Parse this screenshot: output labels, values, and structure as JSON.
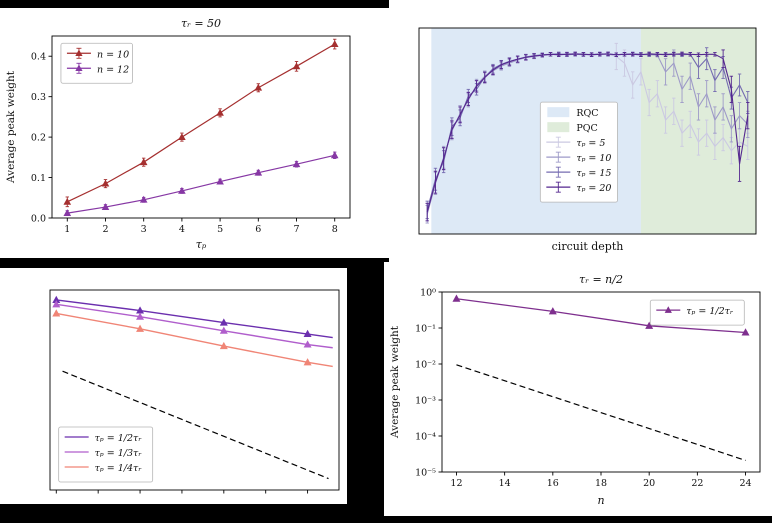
{
  "figure": {
    "background": "#000000",
    "panel_background": "#ffffff"
  },
  "chart_data": [
    {
      "id": "tl",
      "type": "line",
      "title": "τᵣ = 50",
      "xlabel": "τₚ",
      "xlabel_italic": true,
      "xlabel_dy": 30,
      "ylabel": "Average peak weight",
      "xlim": [
        0.6,
        8.4
      ],
      "ylim": [
        0,
        0.45
      ],
      "ylog": false,
      "xticks": [
        1,
        2,
        3,
        4,
        5,
        6,
        7,
        8
      ],
      "yticks": [
        0,
        0.1,
        0.2,
        0.3,
        0.4
      ],
      "ytick_labels": [
        "0.0",
        "0.1",
        "0.2",
        "0.3",
        "0.4"
      ],
      "margins": {
        "l": 52,
        "r": 40,
        "t": 28,
        "b": 40
      },
      "series": [
        {
          "name": "n = 10",
          "color": "#a52f2f",
          "marker": "triangle",
          "width": 1.2,
          "x": [
            1,
            2,
            3,
            4,
            5,
            6,
            7,
            8
          ],
          "y": [
            0.04,
            0.085,
            0.138,
            0.2,
            0.26,
            0.322,
            0.375,
            0.43
          ],
          "err": [
            0.012,
            0.01,
            0.01,
            0.01,
            0.01,
            0.01,
            0.012,
            0.012
          ]
        },
        {
          "name": "n = 12",
          "color": "#8637a4",
          "marker": "triangle",
          "width": 1.2,
          "x": [
            1,
            2,
            3,
            4,
            5,
            6,
            7,
            8
          ],
          "y": [
            0.012,
            0.027,
            0.045,
            0.067,
            0.09,
            0.112,
            0.133,
            0.155
          ],
          "err": [
            0.006,
            0.006,
            0.006,
            0.006,
            0.006,
            0.006,
            0.007,
            0.008
          ]
        }
      ],
      "legend": {
        "fx": 0.03,
        "fy": 0.04,
        "entries": [
          {
            "type": "errline",
            "marker": "triangle",
            "color": "#a52f2f",
            "label": "n = 10",
            "italic": true
          },
          {
            "type": "errline",
            "marker": "triangle",
            "color": "#8637a4",
            "label": "n = 12",
            "italic": true
          }
        ]
      }
    },
    {
      "id": "tr",
      "type": "line",
      "xlabel": "circuit depth",
      "xlabel_italic": false,
      "xlabel_dy": 16,
      "xlim": [
        0,
        41
      ],
      "ylim": [
        0,
        0.47
      ],
      "ylog": false,
      "margins": {
        "l": 30,
        "r": 16,
        "t": 28,
        "b": 28
      },
      "regions": [
        {
          "label": "RQC",
          "color": "#dde9f6",
          "x0": 1.5,
          "x1": 27
        },
        {
          "label": "PQC",
          "color": "#dfecda",
          "x0": 27,
          "x1": 41
        }
      ],
      "series": [
        {
          "name": "τₚ = 5",
          "color": "#cbc9e2",
          "width": 1.1,
          "x": [
            1,
            2,
            3,
            4,
            5,
            6,
            7,
            8,
            9,
            10,
            11,
            12,
            13,
            14,
            15,
            16,
            17,
            18,
            19,
            20,
            21,
            22,
            23,
            24,
            25,
            26,
            27,
            28,
            29,
            30,
            31,
            32,
            33,
            34,
            35,
            36,
            37,
            38,
            39,
            40
          ],
          "y": [
            0.05,
            0.12,
            0.17,
            0.24,
            0.27,
            0.31,
            0.335,
            0.355,
            0.375,
            0.385,
            0.392,
            0.398,
            0.402,
            0.406,
            0.408,
            0.41,
            0.409,
            0.41,
            0.411,
            0.41,
            0.409,
            0.41,
            0.41,
            0.405,
            0.39,
            0.34,
            0.37,
            0.3,
            0.32,
            0.26,
            0.28,
            0.23,
            0.25,
            0.21,
            0.23,
            0.2,
            0.22,
            0.19,
            0.21,
            0.2
          ],
          "err": [
            0.02,
            0.025,
            0.025,
            0.02,
            0.018,
            0.015,
            0.013,
            0.012,
            0.01,
            0.009,
            0.008,
            0.007,
            0.006,
            0.005,
            0.004,
            0.004,
            0.004,
            0.004,
            0.004,
            0.004,
            0.004,
            0.004,
            0.004,
            0.03,
            0.03,
            0.03,
            0.03,
            0.03,
            0.03,
            0.03,
            0.03,
            0.03,
            0.03,
            0.03,
            0.03,
            0.03,
            0.03,
            0.03,
            0.03,
            0.03
          ]
        },
        {
          "name": "τₚ = 10",
          "color": "#9e9ac8",
          "width": 1.1,
          "x": [
            1,
            2,
            3,
            4,
            5,
            6,
            7,
            8,
            9,
            10,
            11,
            12,
            13,
            14,
            15,
            16,
            17,
            18,
            19,
            20,
            21,
            22,
            23,
            24,
            25,
            26,
            27,
            28,
            29,
            30,
            31,
            32,
            33,
            34,
            35,
            36,
            37,
            38,
            39,
            40
          ],
          "y": [
            0.045,
            0.115,
            0.175,
            0.235,
            0.275,
            0.305,
            0.34,
            0.36,
            0.372,
            0.383,
            0.39,
            0.397,
            0.403,
            0.405,
            0.408,
            0.41,
            0.409,
            0.411,
            0.41,
            0.409,
            0.41,
            0.41,
            0.411,
            0.409,
            0.41,
            0.41,
            0.409,
            0.41,
            0.408,
            0.37,
            0.39,
            0.33,
            0.36,
            0.29,
            0.32,
            0.26,
            0.29,
            0.24,
            0.27,
            0.25
          ],
          "err": [
            0.02,
            0.025,
            0.025,
            0.02,
            0.018,
            0.015,
            0.013,
            0.012,
            0.01,
            0.009,
            0.008,
            0.007,
            0.006,
            0.005,
            0.004,
            0.004,
            0.004,
            0.004,
            0.004,
            0.004,
            0.004,
            0.004,
            0.004,
            0.004,
            0.004,
            0.004,
            0.004,
            0.004,
            0.004,
            0.03,
            0.03,
            0.03,
            0.03,
            0.03,
            0.03,
            0.03,
            0.03,
            0.03,
            0.03,
            0.03
          ]
        },
        {
          "name": "τₚ = 15",
          "color": "#756bb1",
          "width": 1.1,
          "x": [
            1,
            2,
            3,
            4,
            5,
            6,
            7,
            8,
            9,
            10,
            11,
            12,
            13,
            14,
            15,
            16,
            17,
            18,
            19,
            20,
            21,
            22,
            23,
            24,
            25,
            26,
            27,
            28,
            29,
            30,
            31,
            32,
            33,
            34,
            35,
            36,
            37,
            38,
            39,
            40
          ],
          "y": [
            0.055,
            0.125,
            0.165,
            0.245,
            0.265,
            0.315,
            0.33,
            0.358,
            0.377,
            0.387,
            0.394,
            0.399,
            0.404,
            0.407,
            0.409,
            0.41,
            0.411,
            0.409,
            0.41,
            0.41,
            0.409,
            0.411,
            0.41,
            0.409,
            0.41,
            0.411,
            0.41,
            0.409,
            0.41,
            0.41,
            0.411,
            0.409,
            0.41,
            0.38,
            0.4,
            0.35,
            0.38,
            0.31,
            0.34,
            0.3
          ],
          "err": [
            0.02,
            0.025,
            0.025,
            0.02,
            0.018,
            0.015,
            0.013,
            0.012,
            0.01,
            0.009,
            0.008,
            0.007,
            0.006,
            0.005,
            0.004,
            0.004,
            0.004,
            0.004,
            0.004,
            0.004,
            0.004,
            0.004,
            0.004,
            0.004,
            0.004,
            0.004,
            0.004,
            0.004,
            0.004,
            0.004,
            0.004,
            0.004,
            0.004,
            0.025,
            0.025,
            0.025,
            0.025,
            0.025,
            0.025,
            0.025
          ]
        },
        {
          "name": "τₚ = 20",
          "color": "#54278f",
          "width": 1.1,
          "x": [
            1,
            2,
            3,
            4,
            5,
            6,
            7,
            8,
            9,
            10,
            11,
            12,
            13,
            14,
            15,
            16,
            17,
            18,
            19,
            20,
            21,
            22,
            23,
            24,
            25,
            26,
            27,
            28,
            29,
            30,
            31,
            32,
            33,
            34,
            35,
            36,
            37,
            38,
            39,
            40
          ],
          "y": [
            0.05,
            0.118,
            0.172,
            0.238,
            0.272,
            0.308,
            0.337,
            0.357,
            0.374,
            0.386,
            0.393,
            0.399,
            0.403,
            0.406,
            0.408,
            0.41,
            0.409,
            0.41,
            0.411,
            0.41,
            0.409,
            0.41,
            0.411,
            0.409,
            0.41,
            0.41,
            0.409,
            0.411,
            0.41,
            0.409,
            0.41,
            0.411,
            0.41,
            0.409,
            0.41,
            0.41,
            0.4,
            0.33,
            0.16,
            0.27
          ],
          "err": [
            0.02,
            0.025,
            0.025,
            0.02,
            0.018,
            0.015,
            0.013,
            0.012,
            0.01,
            0.009,
            0.008,
            0.007,
            0.006,
            0.005,
            0.004,
            0.004,
            0.004,
            0.004,
            0.004,
            0.004,
            0.004,
            0.004,
            0.004,
            0.004,
            0.004,
            0.004,
            0.004,
            0.004,
            0.004,
            0.004,
            0.004,
            0.004,
            0.004,
            0.004,
            0.004,
            0.004,
            0.02,
            0.03,
            0.04,
            0.03
          ]
        }
      ],
      "legend": {
        "fx": 0.36,
        "fy": 0.36,
        "entries": [
          {
            "type": "patch",
            "color": "#dde9f6",
            "label": "RQC",
            "italic": false
          },
          {
            "type": "patch",
            "color": "#dfecda",
            "label": "PQC",
            "italic": false
          },
          {
            "type": "errline",
            "color": "#cbc9e2",
            "label": "τₚ = 5",
            "italic": true
          },
          {
            "type": "errline",
            "color": "#9e9ac8",
            "label": "τₚ = 10",
            "italic": true
          },
          {
            "type": "errline",
            "color": "#756bb1",
            "label": "τₚ = 15",
            "italic": true
          },
          {
            "type": "errline",
            "color": "#54278f",
            "label": "τₚ = 20",
            "italic": true
          }
        ]
      }
    },
    {
      "id": "bl",
      "type": "line",
      "xlim": [
        11.7,
        25.5
      ],
      "ylim": [
        0.003,
        1.1
      ],
      "ylog": true,
      "xticks": [
        12,
        14,
        16,
        18,
        20,
        22,
        24
      ],
      "xtick_labels": [
        "",
        "",
        "",
        "",
        "",
        "",
        ""
      ],
      "margins": {
        "l": 50,
        "r": 8,
        "t": 22,
        "b": 14
      },
      "series": [
        {
          "name": "τₚ = 1/2τᵣ",
          "color": "#6b2fae",
          "marker": "triangle",
          "marker_size": 4.2,
          "width": 1.4,
          "x": [
            12,
            16,
            20,
            24,
            25.2
          ],
          "y": [
            0.82,
            0.6,
            0.42,
            0.3,
            0.27
          ],
          "marker_x": [
            12,
            16,
            20,
            24
          ]
        },
        {
          "name": "τₚ = 1/3τᵣ",
          "color": "#b05ecc",
          "marker": "triangle",
          "marker_size": 4.2,
          "width": 1.4,
          "x": [
            12,
            16,
            20,
            24,
            25.2
          ],
          "y": [
            0.72,
            0.5,
            0.33,
            0.22,
            0.2
          ],
          "marker_x": [
            12,
            16,
            20,
            24
          ]
        },
        {
          "name": "τₚ = 1/4τᵣ",
          "color": "#f08576",
          "marker": "triangle",
          "marker_size": 4.2,
          "width": 1.4,
          "x": [
            12,
            16,
            20,
            24,
            25.2
          ],
          "y": [
            0.55,
            0.35,
            0.21,
            0.13,
            0.115
          ],
          "marker_x": [
            12,
            16,
            20,
            24
          ]
        },
        {
          "name": "guide",
          "color": "#000000",
          "dash": true,
          "width": 1.2,
          "x": [
            12.3,
            25
          ],
          "y": [
            0.1,
            0.0042
          ]
        }
      ],
      "legend": {
        "fx": 0.03,
        "fy": 0.685,
        "entries": [
          {
            "type": "line",
            "color": "#6b2fae",
            "label": "τₚ = 1/2τᵣ",
            "italic": true
          },
          {
            "type": "line",
            "color": "#b05ecc",
            "label": "τₚ = 1/3τᵣ",
            "italic": true
          },
          {
            "type": "line",
            "color": "#f08576",
            "label": "τₚ = 1/4τᵣ",
            "italic": true
          }
        ]
      }
    },
    {
      "id": "br",
      "type": "line",
      "title": "τᵣ = n/2",
      "xlabel": "n",
      "xlabel_italic": true,
      "xlabel_dy": 32,
      "ylabel": "Average peak weight",
      "xlim": [
        11.4,
        24.6
      ],
      "ylim": [
        1e-05,
        1
      ],
      "ylog": true,
      "xticks": [
        12,
        14,
        16,
        18,
        20,
        22,
        24
      ],
      "yticks": [
        1,
        0.1,
        0.01,
        0.001,
        0.0001,
        1e-05
      ],
      "ytick_labels": [
        "10⁰",
        "10⁻¹",
        "10⁻²",
        "10⁻³",
        "10⁻⁴",
        "10⁻⁵"
      ],
      "margins": {
        "l": 58,
        "r": 12,
        "t": 30,
        "b": 44
      },
      "series": [
        {
          "name": "τₚ = 1/2τᵣ",
          "color": "#7e2f8e",
          "marker": "triangle",
          "marker_size": 4.2,
          "width": 1.3,
          "x": [
            12,
            16,
            20,
            24
          ],
          "y": [
            0.65,
            0.29,
            0.115,
            0.075
          ],
          "err": [
            0.02,
            0.012,
            0.008,
            0.005
          ]
        },
        {
          "name": "guide",
          "color": "#000000",
          "dash": true,
          "width": 1.2,
          "x": [
            12,
            24
          ],
          "y": [
            0.0095,
            2.1e-05
          ]
        }
      ],
      "legend": {
        "fx": 0.655,
        "fy": 0.045,
        "entries": [
          {
            "type": "line",
            "marker": "triangle",
            "color": "#7e2f8e",
            "label": "τₚ = 1/2τᵣ",
            "italic": true
          }
        ]
      }
    }
  ]
}
